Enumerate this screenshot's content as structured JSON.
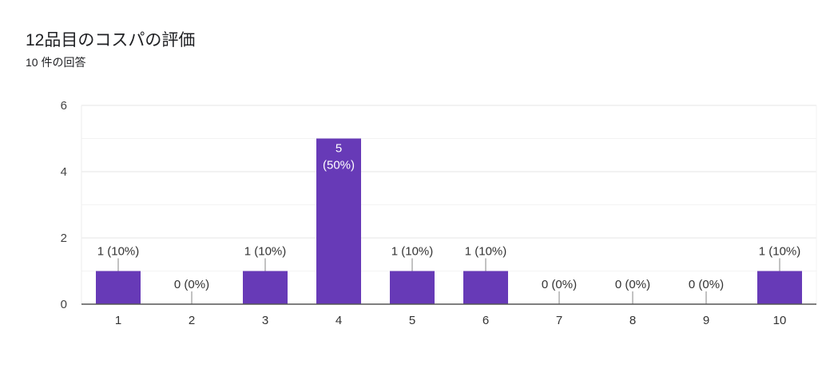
{
  "header": {
    "title": "12品目のコスパの評価",
    "subtitle": "10 件の回答"
  },
  "chart_data": {
    "type": "bar",
    "categories": [
      "1",
      "2",
      "3",
      "4",
      "5",
      "6",
      "7",
      "8",
      "9",
      "10"
    ],
    "values": [
      1,
      0,
      1,
      5,
      1,
      1,
      0,
      0,
      0,
      1
    ],
    "data_labels": [
      "1 (10%)",
      "0 (0%)",
      "1 (10%)",
      "5 (50%)",
      "1 (10%)",
      "1 (10%)",
      "0 (0%)",
      "0 (0%)",
      "0 (0%)",
      "1 (10%)"
    ],
    "title": "12品目のコスパの評価",
    "xlabel": "",
    "ylabel": "",
    "ylim": [
      0,
      6
    ],
    "yticks": [
      0,
      2,
      4,
      6
    ],
    "grid": true,
    "bar_color": "#673ab7"
  }
}
